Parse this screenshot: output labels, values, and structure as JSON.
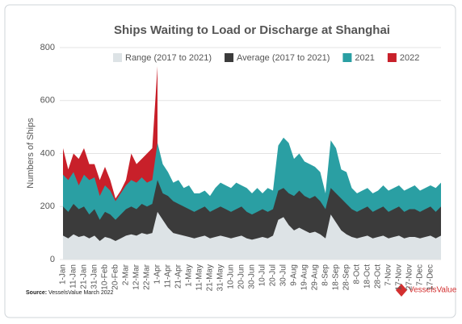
{
  "chart_data": {
    "type": "area",
    "title": "Ships Waiting to Load or Discharge at Shanghai",
    "y_label": "Numbers of Ships",
    "source_label": "Source:",
    "source": "VesselsValue March 2022",
    "logo": "VesselsValue",
    "categories": [
      "1-Jan",
      null,
      "11-Jan",
      null,
      "21-Jan",
      null,
      "31-Jan",
      null,
      "10-Feb",
      null,
      "20-Feb",
      null,
      "2-Mar",
      null,
      "12-Mar",
      null,
      "22-Mar",
      null,
      "1-Apr",
      null,
      "11-Apr",
      null,
      "21-Apr",
      null,
      "1-May",
      null,
      "11-May",
      null,
      "21-May",
      null,
      "31-May",
      null,
      "10-Jun",
      null,
      "20-Jun",
      null,
      "30-Jun",
      null,
      "10-Jul",
      null,
      "20-Jul",
      null,
      "30-Jul",
      null,
      "9-Aug",
      null,
      "19-Aug",
      null,
      "29-Aug",
      null,
      "8-Sep",
      null,
      "18-Sep",
      null,
      "28-Sep",
      null,
      "8-Oct",
      null,
      "18-Oct",
      null,
      "28-Oct",
      null,
      "7-Nov",
      null,
      "17-Nov",
      null,
      "27-Nov",
      null,
      "7-Dec",
      null,
      "17-Dec",
      null,
      null
    ],
    "series": [
      {
        "name": "Range (2017 to 2021)",
        "color": "#dde3e6",
        "values": [
          90,
          80,
          95,
          85,
          90,
          80,
          90,
          70,
          85,
          80,
          70,
          80,
          90,
          95,
          90,
          100,
          95,
          100,
          180,
          150,
          120,
          100,
          95,
          90,
          85,
          80,
          85,
          90,
          80,
          85,
          90,
          85,
          80,
          85,
          90,
          80,
          75,
          80,
          85,
          80,
          90,
          150,
          160,
          130,
          110,
          120,
          110,
          100,
          105,
          95,
          80,
          170,
          140,
          110,
          95,
          85,
          80,
          85,
          90,
          80,
          85,
          90,
          80,
          85,
          90,
          80,
          85,
          85,
          80,
          85,
          90,
          80,
          90
        ]
      },
      {
        "name": "Average (2017 to 2021)",
        "color": "#3b3b3b",
        "values": [
          200,
          180,
          210,
          190,
          200,
          170,
          190,
          150,
          180,
          170,
          150,
          170,
          190,
          200,
          190,
          210,
          200,
          210,
          300,
          250,
          240,
          220,
          210,
          200,
          190,
          180,
          190,
          200,
          180,
          190,
          200,
          190,
          180,
          190,
          200,
          180,
          170,
          180,
          190,
          180,
          190,
          260,
          270,
          250,
          240,
          260,
          240,
          230,
          240,
          220,
          190,
          270,
          250,
          230,
          210,
          190,
          180,
          190,
          200,
          180,
          190,
          200,
          180,
          190,
          200,
          180,
          190,
          190,
          180,
          190,
          200,
          180,
          200
        ]
      },
      {
        "name": "2021",
        "color": "#2a9fa3",
        "values": [
          320,
          300,
          330,
          280,
          320,
          300,
          310,
          240,
          280,
          260,
          220,
          250,
          280,
          300,
          290,
          310,
          290,
          300,
          440,
          360,
          330,
          290,
          300,
          270,
          280,
          250,
          250,
          260,
          240,
          270,
          290,
          280,
          270,
          290,
          280,
          270,
          250,
          270,
          250,
          270,
          260,
          430,
          460,
          440,
          380,
          400,
          370,
          360,
          350,
          330,
          250,
          450,
          420,
          340,
          330,
          270,
          250,
          260,
          270,
          250,
          260,
          280,
          260,
          270,
          280,
          260,
          270,
          280,
          260,
          270,
          280,
          270,
          290
        ]
      },
      {
        "name": "2022",
        "color": "#c8202a",
        "values": [
          420,
          340,
          400,
          380,
          420,
          360,
          360,
          300,
          350,
          300,
          230,
          260,
          300,
          400,
          360,
          380,
          400,
          420,
          730,
          null,
          null,
          null,
          null,
          null,
          null,
          null,
          null,
          null,
          null,
          null,
          null,
          null,
          null,
          null,
          null,
          null,
          null,
          null,
          null,
          null,
          null,
          null,
          null,
          null,
          null,
          null,
          null,
          null,
          null,
          null,
          null,
          null,
          null,
          null,
          null,
          null,
          null,
          null,
          null,
          null,
          null,
          null,
          null,
          null,
          null,
          null,
          null,
          null,
          null,
          null,
          null,
          null,
          null
        ]
      }
    ],
    "draw_order": [
      "2022",
      "2021",
      "Average (2017 to 2021)",
      "Range (2017 to 2021)"
    ],
    "ylim": [
      0,
      800
    ],
    "yticks": [
      0,
      200,
      400,
      600,
      800
    ],
    "grid": true,
    "legend": "top"
  }
}
